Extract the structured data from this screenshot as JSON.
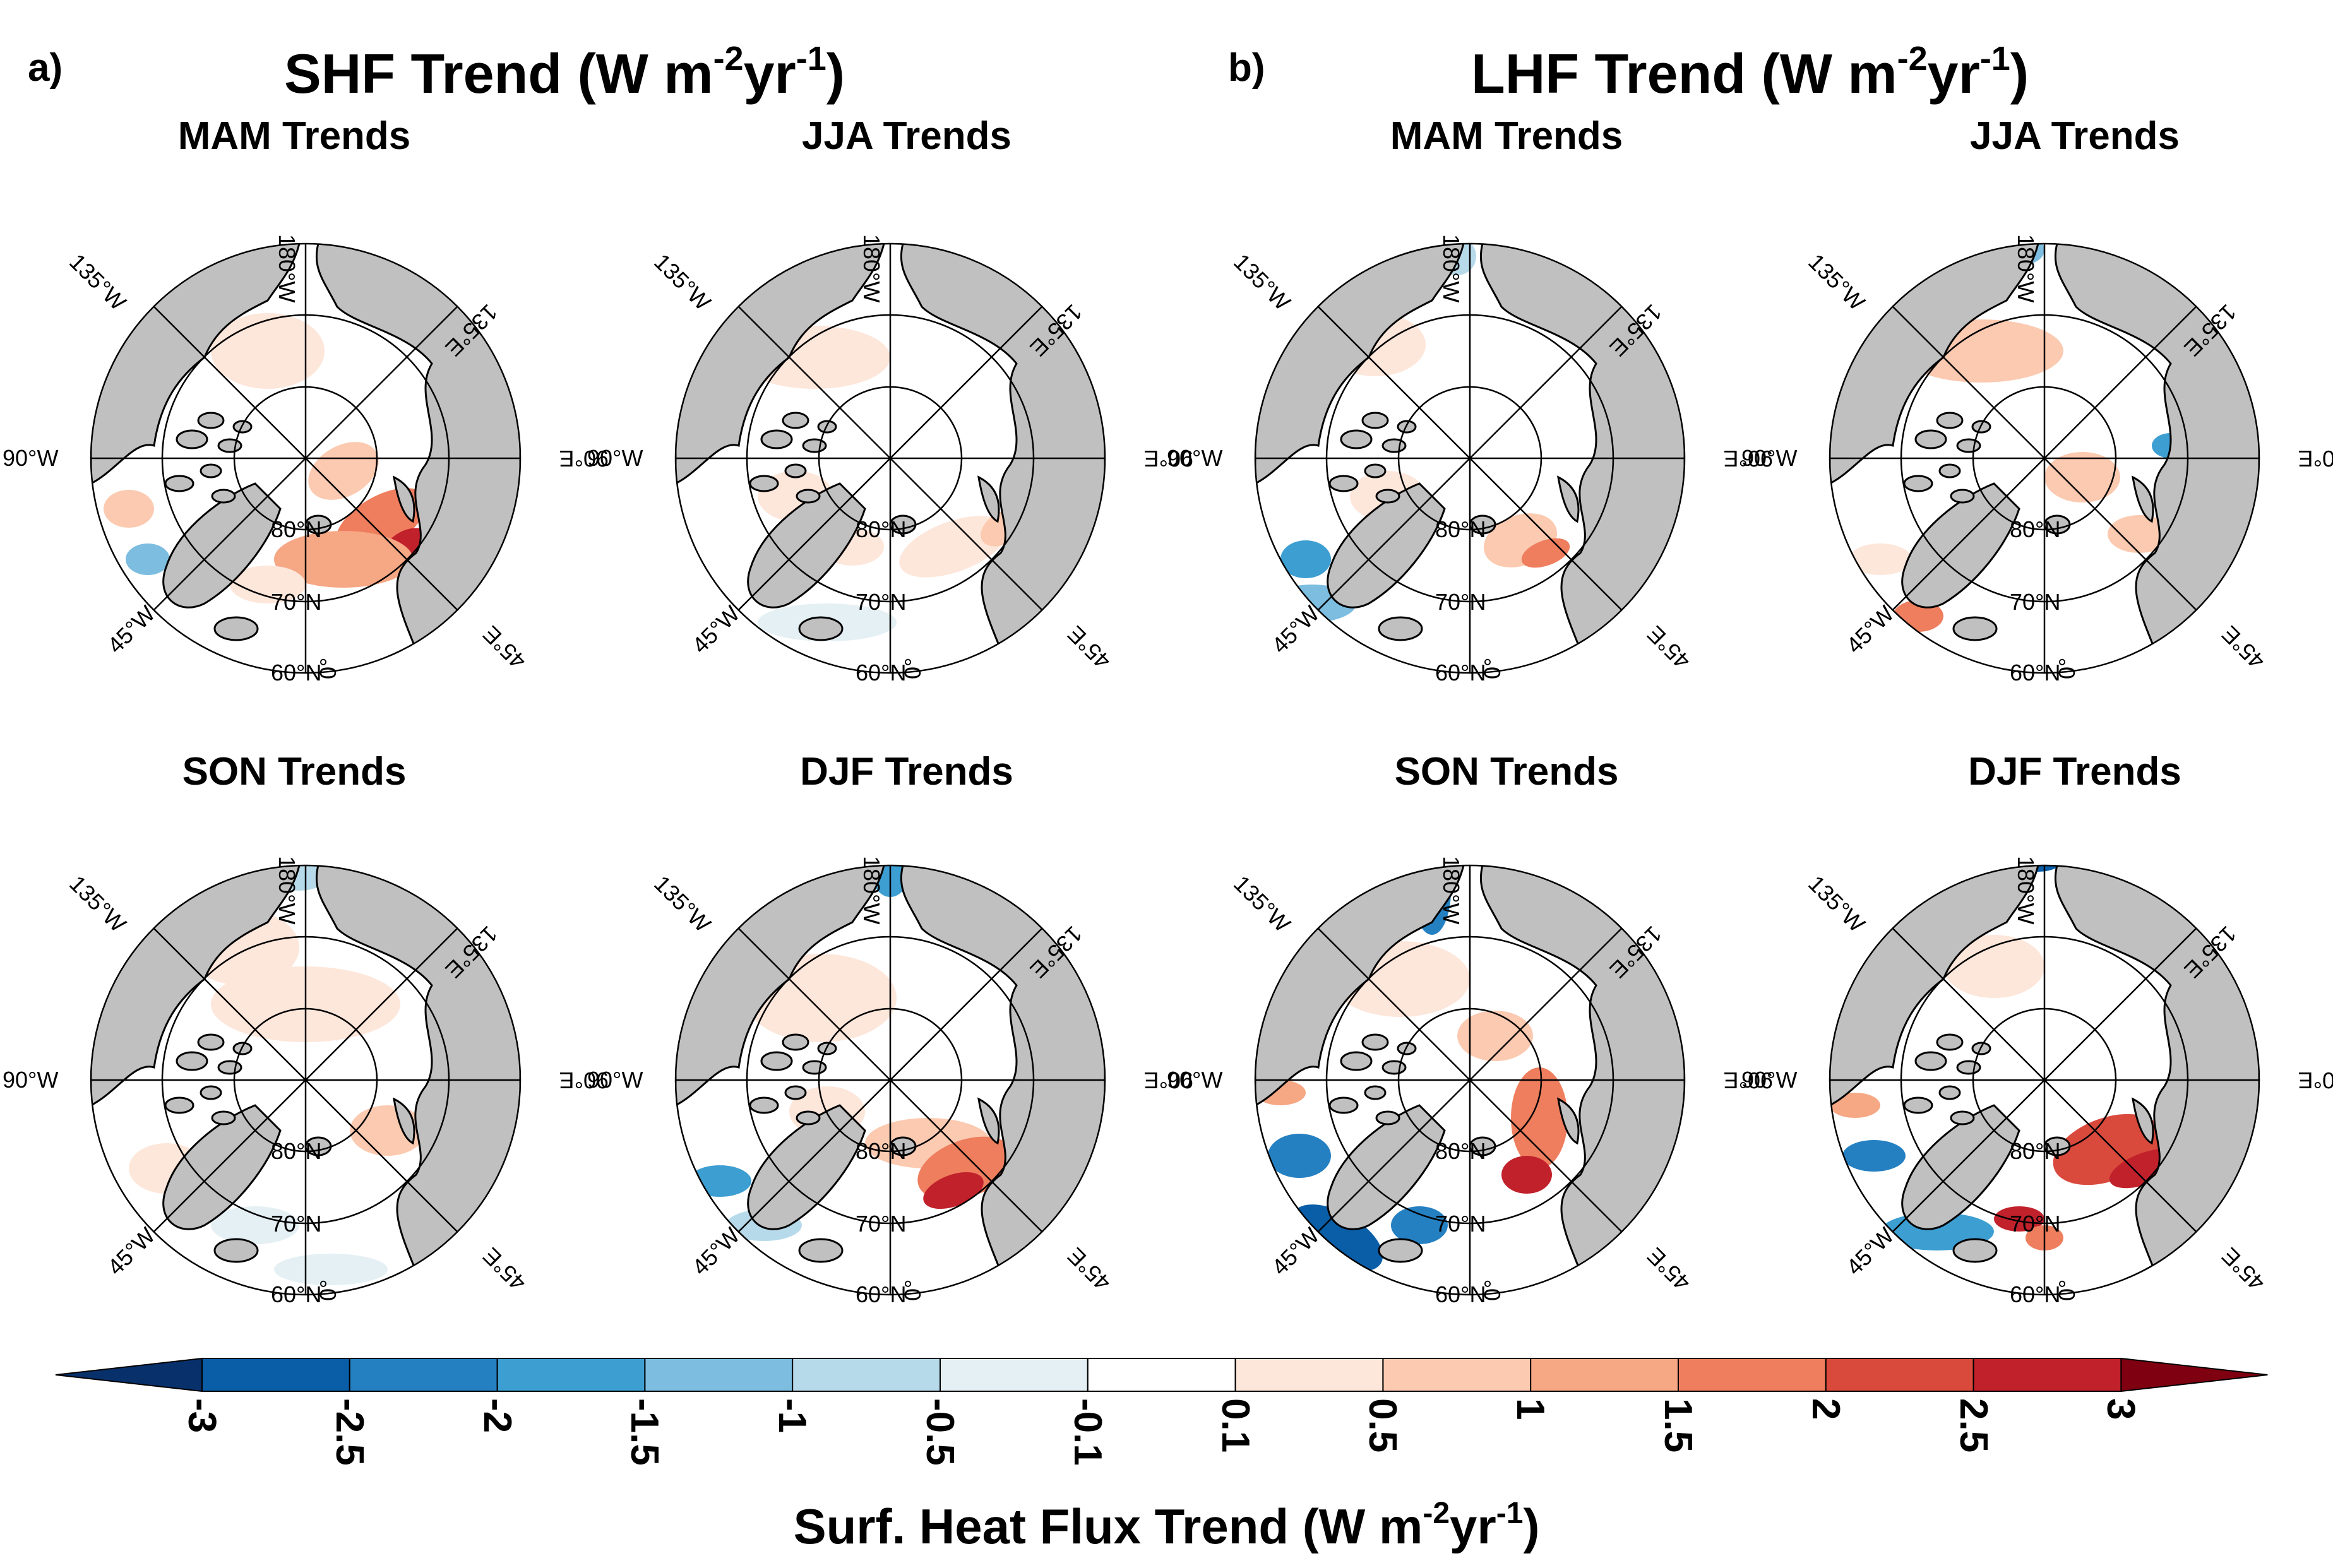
{
  "panels": [
    {
      "letter": "a)",
      "title_main": "SHF Trend (W m",
      "title_sup1": "-2",
      "title_mid": "yr",
      "title_sup2": "-1",
      "title_end": ")"
    },
    {
      "letter": "b)",
      "title_main": "LHF Trend (W m",
      "title_sup1": "-2",
      "title_mid": "yr",
      "title_sup2": "-1",
      "title_end": ")"
    }
  ],
  "maps": [
    {
      "title": "MAM Trends",
      "variable": "SHF"
    },
    {
      "title": "JJA Trends",
      "variable": "SHF"
    },
    {
      "title": "SON Trends",
      "variable": "SHF"
    },
    {
      "title": "DJF Trends",
      "variable": "SHF"
    },
    {
      "title": "MAM Trends",
      "variable": "LHF"
    },
    {
      "title": "JJA Trends",
      "variable": "LHF"
    },
    {
      "title": "SON Trends",
      "variable": "LHF"
    },
    {
      "title": "DJF Trends",
      "variable": "LHF"
    }
  ],
  "map_labels": {
    "top": "180°W",
    "left": "90°W",
    "right": "90°E",
    "upper_left": "135°W",
    "upper_right": "135°E",
    "lower_left": "45°W",
    "lower_right": "45°E",
    "bottom": "0°",
    "lat80": "80°N",
    "lat70": "70°N",
    "lat60": "60°N"
  },
  "colorbar": {
    "labels": [
      "-3",
      "-2.5",
      "-2",
      "-1.5",
      "-1",
      "-0.5",
      "-0.1",
      "0.1",
      "0.5",
      "1",
      "1.5",
      "2",
      "2.5",
      "3"
    ],
    "colors": [
      "#08306b",
      "#0a5ea8",
      "#2580c2",
      "#3d9ed2",
      "#7cbde0",
      "#b7daeb",
      "#e4f0f4",
      "#ffffff",
      "#fde6da",
      "#fbcab0",
      "#f6a784",
      "#ee7e5e",
      "#d94a3d",
      "#c1212b",
      "#7f0010"
    ],
    "title_main": "Surf. Heat Flux Trend (W m",
    "title_sup1": "-2",
    "title_mid": "yr",
    "title_sup2": "-1",
    "title_end": ")"
  },
  "style": {
    "land": "#c0c0c0",
    "ocean": "#ffffff",
    "coast": "#000000"
  }
}
